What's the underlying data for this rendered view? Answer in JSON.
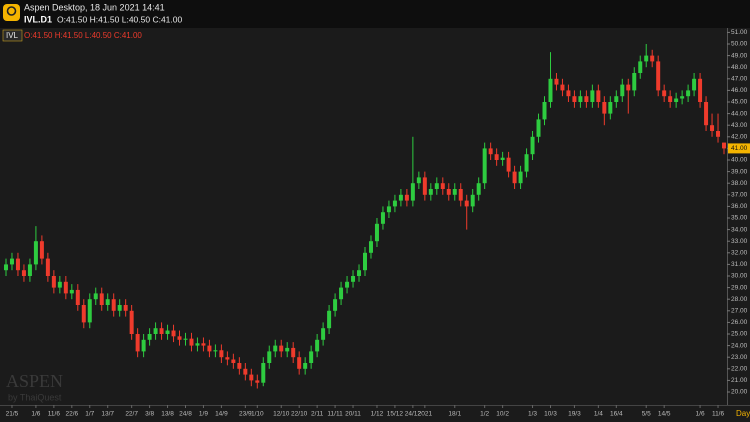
{
  "header": {
    "app": "Aspen Desktop, 18 Jun 2021 14:41",
    "symbol": "IVL.D1",
    "quote": "O:41.50 H:41.50 L:40.50 C:41.00"
  },
  "chart_data": {
    "type": "candlestick",
    "symbol": "IVL",
    "quote": "O:41.50 H:41.50 L:40.50 C:41.00",
    "period": "Day",
    "watermark": "ASPEN",
    "watermark_sub": "by ThaiQuest",
    "up_color": "#2ecc40",
    "down_color": "#ef3b2c",
    "ylim": [
      20,
      51.5
    ],
    "yticks": [
      {
        "value": 20,
        "label": "20.00"
      },
      {
        "value": 21,
        "label": "21.00"
      },
      {
        "value": 22,
        "label": "22.00"
      },
      {
        "value": 23,
        "label": "23.00"
      },
      {
        "value": 24,
        "label": "24.00"
      },
      {
        "value": 25,
        "label": "25.00"
      },
      {
        "value": 26,
        "label": "26.00"
      },
      {
        "value": 27,
        "label": "27.00"
      },
      {
        "value": 28,
        "label": "28.00"
      },
      {
        "value": 29,
        "label": "29.00"
      },
      {
        "value": 30,
        "label": "30.00"
      },
      {
        "value": 31,
        "label": "31.00"
      },
      {
        "value": 32,
        "label": "32.00"
      },
      {
        "value": 33,
        "label": "33.00"
      },
      {
        "value": 34,
        "label": "34.00"
      },
      {
        "value": 35,
        "label": "35.00"
      },
      {
        "value": 36,
        "label": "36.00"
      },
      {
        "value": 37,
        "label": "37.00"
      },
      {
        "value": 38,
        "label": "38.00"
      },
      {
        "value": 39,
        "label": "39.00"
      },
      {
        "value": 40,
        "label": "40.00"
      },
      {
        "value": 41,
        "label": "41.00"
      },
      {
        "value": 42,
        "label": "42.00"
      },
      {
        "value": 43,
        "label": "43.00"
      },
      {
        "value": 44,
        "label": "44.00"
      },
      {
        "value": 45,
        "label": "45.00"
      },
      {
        "value": 46,
        "label": "46.00"
      },
      {
        "value": 47,
        "label": "47.00"
      },
      {
        "value": 48,
        "label": "48.00"
      },
      {
        "value": 49,
        "label": "49.00"
      },
      {
        "value": 50,
        "label": "50.00"
      },
      {
        "value": 51,
        "label": "51.00"
      }
    ],
    "last_price": {
      "value": 41,
      "label": "41.00"
    },
    "categories": [
      null,
      "21/5",
      null,
      null,
      null,
      "1/6",
      null,
      null,
      "11/6",
      null,
      null,
      "22/6",
      null,
      null,
      "1/7",
      null,
      null,
      "13/7",
      null,
      null,
      null,
      "22/7",
      null,
      null,
      "3/8",
      null,
      null,
      "13/8",
      null,
      null,
      "24/8",
      null,
      null,
      "1/9",
      null,
      null,
      "14/9",
      null,
      null,
      null,
      "23/9",
      null,
      "1/10",
      null,
      null,
      null,
      "12/10",
      null,
      null,
      "22/10",
      null,
      null,
      "2/11",
      null,
      null,
      "11/11",
      null,
      null,
      "20/11",
      null,
      null,
      null,
      "1/12",
      null,
      null,
      "15/12",
      null,
      null,
      "24/12",
      null,
      "2021",
      null,
      null,
      null,
      null,
      "18/1",
      null,
      null,
      null,
      null,
      "1/2",
      null,
      null,
      "10/2",
      null,
      null,
      null,
      null,
      "1/3",
      null,
      null,
      "10/3",
      null,
      null,
      null,
      "19/3",
      null,
      null,
      null,
      "1/4",
      null,
      null,
      "16/4",
      null,
      null,
      null,
      null,
      "5/5",
      null,
      null,
      "14/5",
      null,
      null,
      null,
      null,
      null,
      "1/6",
      null,
      null,
      "11/6",
      null
    ],
    "ohlc": [
      [
        30.5,
        31.5,
        30,
        31
      ],
      [
        31,
        32,
        30.5,
        31.5
      ],
      [
        31.5,
        32,
        30,
        30.5
      ],
      [
        30.5,
        31,
        29.5,
        30
      ],
      [
        30,
        31.5,
        29.5,
        31
      ],
      [
        31,
        34.3,
        30.5,
        33
      ],
      [
        33,
        33.5,
        31,
        31.5
      ],
      [
        31.5,
        32,
        29.5,
        30
      ],
      [
        30,
        30.5,
        28.5,
        29
      ],
      [
        29,
        30,
        28.5,
        29.5
      ],
      [
        29.5,
        30,
        28,
        28.5
      ],
      [
        28.5,
        29.3,
        28,
        28.8
      ],
      [
        28.8,
        29.3,
        27,
        27.5
      ],
      [
        27.5,
        28,
        25.5,
        26
      ],
      [
        26,
        28.5,
        25.5,
        28
      ],
      [
        28,
        29,
        27.5,
        28.5
      ],
      [
        28.5,
        29,
        27,
        27.5
      ],
      [
        27.5,
        28.5,
        27,
        28
      ],
      [
        28,
        28.5,
        26.5,
        27
      ],
      [
        27,
        28,
        26.5,
        27.5
      ],
      [
        27.5,
        28,
        26.5,
        27
      ],
      [
        27,
        27.5,
        24.5,
        25
      ],
      [
        25,
        25.5,
        23,
        23.5
      ],
      [
        23.5,
        25,
        23,
        24.5
      ],
      [
        24.5,
        25.5,
        24,
        25
      ],
      [
        25,
        26,
        24.5,
        25.5
      ],
      [
        25.5,
        26,
        24.5,
        25
      ],
      [
        25,
        25.8,
        24.5,
        25.3
      ],
      [
        25.3,
        25.8,
        24.3,
        24.8
      ],
      [
        24.8,
        25.3,
        24,
        24.5
      ],
      [
        24.5,
        25.1,
        24,
        24.6
      ],
      [
        24.6,
        25.1,
        23.5,
        24
      ],
      [
        24,
        24.7,
        23.5,
        24.2
      ],
      [
        24.2,
        24.7,
        23.5,
        24
      ],
      [
        24,
        24.5,
        23,
        23.5
      ],
      [
        23.5,
        24.1,
        23,
        23.6
      ],
      [
        23.6,
        24.1,
        22.5,
        23
      ],
      [
        23,
        23.5,
        22.3,
        22.8
      ],
      [
        22.8,
        23.3,
        22,
        22.5
      ],
      [
        22.5,
        23,
        21.5,
        22
      ],
      [
        22,
        22.5,
        21,
        21.5
      ],
      [
        21.5,
        22,
        20.5,
        21
      ],
      [
        21,
        21.5,
        20.3,
        20.8
      ],
      [
        20.8,
        23,
        20.5,
        22.5
      ],
      [
        22.5,
        24,
        22,
        23.5
      ],
      [
        23.5,
        24.5,
        23,
        24
      ],
      [
        24,
        24.5,
        23,
        23.5
      ],
      [
        23.5,
        24.3,
        23,
        23.8
      ],
      [
        23.8,
        24.3,
        22.5,
        23
      ],
      [
        23,
        23.5,
        21.5,
        22
      ],
      [
        22,
        23,
        21.5,
        22.5
      ],
      [
        22.5,
        24,
        22,
        23.5
      ],
      [
        23.5,
        25,
        23,
        24.5
      ],
      [
        24.5,
        26,
        24,
        25.5
      ],
      [
        25.5,
        27.5,
        25,
        27
      ],
      [
        27,
        28.5,
        26.5,
        28
      ],
      [
        28,
        29.5,
        27.5,
        29
      ],
      [
        29,
        30,
        28.5,
        29.5
      ],
      [
        29.5,
        30.5,
        29,
        30
      ],
      [
        30,
        31,
        29.5,
        30.5
      ],
      [
        30.5,
        32.5,
        30,
        32
      ],
      [
        32,
        33.5,
        31.5,
        33
      ],
      [
        33,
        35,
        32.5,
        34.5
      ],
      [
        34.5,
        36,
        34,
        35.5
      ],
      [
        35.5,
        36.5,
        35,
        36
      ],
      [
        36,
        37,
        35.5,
        36.5
      ],
      [
        36.5,
        37.5,
        36,
        37
      ],
      [
        37,
        37.5,
        36,
        36.5
      ],
      [
        36.5,
        42,
        36,
        38
      ],
      [
        38,
        39,
        37.5,
        38.5
      ],
      [
        38.5,
        39,
        36.5,
        37
      ],
      [
        37,
        38,
        36.5,
        37.5
      ],
      [
        37.5,
        38.5,
        37,
        38
      ],
      [
        38,
        38.5,
        37,
        37.5
      ],
      [
        37.5,
        38,
        36.5,
        37
      ],
      [
        37,
        38,
        36.5,
        37.5
      ],
      [
        37.5,
        38,
        36,
        36.5
      ],
      [
        36.5,
        37,
        34,
        36
      ],
      [
        36,
        37.5,
        35.5,
        37
      ],
      [
        37,
        38.5,
        36.5,
        38
      ],
      [
        38,
        41.5,
        37.5,
        41
      ],
      [
        41,
        41.5,
        40,
        40.5
      ],
      [
        40.5,
        41,
        39.5,
        40
      ],
      [
        40,
        40.7,
        39.5,
        40.2
      ],
      [
        40.2,
        40.7,
        38.5,
        39
      ],
      [
        39,
        39.5,
        37.5,
        38
      ],
      [
        38,
        39.5,
        37.5,
        39
      ],
      [
        39,
        41,
        38.5,
        40.5
      ],
      [
        40.5,
        42.5,
        40,
        42
      ],
      [
        42,
        44,
        41.5,
        43.5
      ],
      [
        43.5,
        45.5,
        43,
        45
      ],
      [
        45,
        49.3,
        44.5,
        47
      ],
      [
        47,
        47.5,
        46,
        46.5
      ],
      [
        46.5,
        47,
        45.5,
        46
      ],
      [
        46,
        46.5,
        45,
        45.5
      ],
      [
        45.5,
        46,
        44.5,
        45
      ],
      [
        45,
        46,
        44.5,
        45.5
      ],
      [
        45.5,
        46,
        44.5,
        45
      ],
      [
        45,
        46.5,
        44.5,
        46
      ],
      [
        46,
        46.5,
        44.5,
        45
      ],
      [
        45,
        45.5,
        43,
        44
      ],
      [
        44,
        45.5,
        43.5,
        45
      ],
      [
        45,
        46,
        44.5,
        45.5
      ],
      [
        45.5,
        47,
        45,
        46.5
      ],
      [
        46.5,
        47,
        44,
        46
      ],
      [
        46,
        48,
        45.5,
        47.5
      ],
      [
        47.5,
        49,
        47,
        48.5
      ],
      [
        48.5,
        50,
        48,
        49
      ],
      [
        49,
        49.5,
        48,
        48.5
      ],
      [
        48.5,
        49,
        45.5,
        46
      ],
      [
        46,
        46.5,
        45,
        45.5
      ],
      [
        45.5,
        46,
        44.5,
        45
      ],
      [
        45,
        45.8,
        44.5,
        45.3
      ],
      [
        45.3,
        46,
        44.8,
        45.5
      ],
      [
        45.5,
        46.5,
        45,
        46
      ],
      [
        46,
        47.5,
        45.5,
        47
      ],
      [
        47,
        47.5,
        44.5,
        45
      ],
      [
        45,
        45.5,
        42.5,
        43
      ],
      [
        43,
        44,
        42,
        42.5
      ],
      [
        42.5,
        44,
        41.5,
        42
      ],
      [
        41.5,
        41.5,
        40.5,
        41
      ]
    ]
  }
}
